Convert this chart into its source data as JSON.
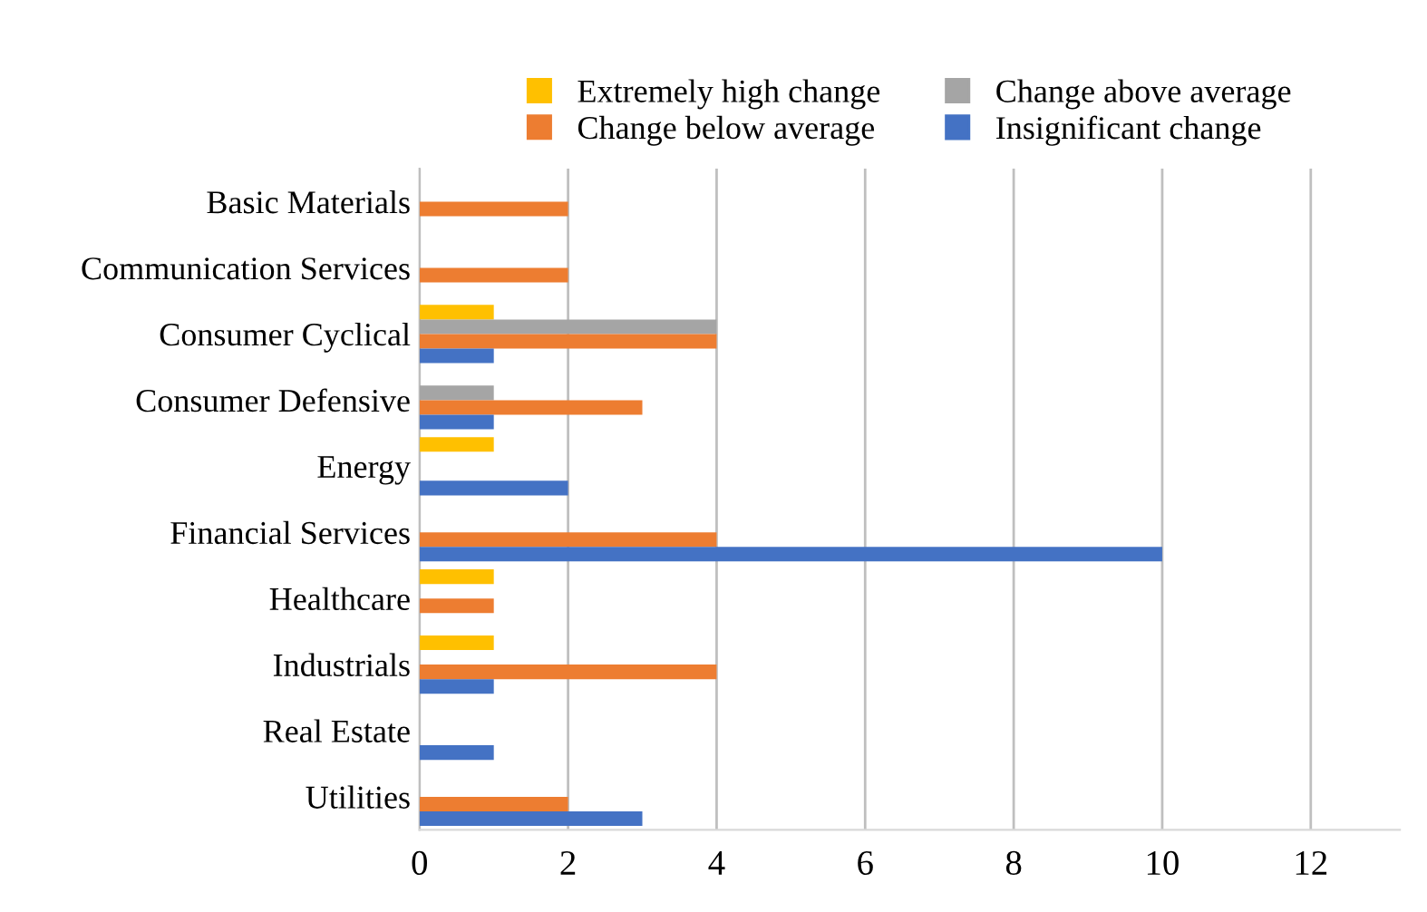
{
  "chart_data": {
    "type": "bar",
    "orientation": "horizontal",
    "categories": [
      "Basic Materials",
      "Communication Services",
      "Consumer Cyclical",
      "Consumer Defensive",
      "Energy",
      "Financial Services",
      "Healthcare",
      "Industrials",
      "Real Estate",
      "Utilities"
    ],
    "series": [
      {
        "name": "Extremely high change",
        "color": "#ffc000",
        "values": [
          null,
          null,
          1,
          null,
          1,
          null,
          1,
          1,
          null,
          null
        ]
      },
      {
        "name": "Change above average",
        "color": "#a5a5a5",
        "values": [
          null,
          null,
          4,
          1,
          null,
          null,
          null,
          null,
          null,
          null
        ]
      },
      {
        "name": "Change below average",
        "color": "#ed7d31",
        "values": [
          2,
          2,
          4,
          3,
          null,
          4,
          1,
          4,
          null,
          2
        ]
      },
      {
        "name": "Insignificant change",
        "color": "#4472c4",
        "values": [
          null,
          null,
          1,
          1,
          2,
          10,
          null,
          1,
          1,
          3
        ]
      }
    ],
    "xlim": [
      0,
      13.2
    ],
    "xticks": [
      0,
      2,
      4,
      6,
      8,
      10,
      12
    ],
    "grid": "x",
    "legend": "top"
  }
}
